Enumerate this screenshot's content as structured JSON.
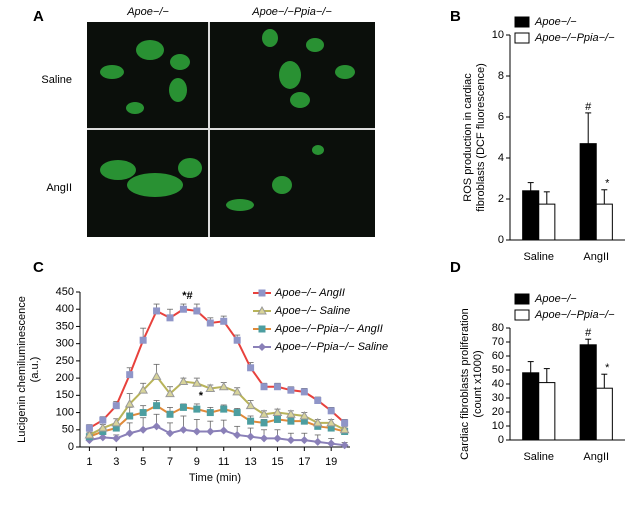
{
  "panel_a": {
    "label": "A",
    "columns": [
      "Apoe−/−",
      "Apoe−/−Ppia−/−"
    ],
    "rows": [
      "Saline",
      "AngII"
    ]
  },
  "chart_data": [
    {
      "type": "bar",
      "label": "B",
      "y_label": [
        "ROS production in cardiac",
        "fibroblasts (DCF fluorescence)"
      ],
      "categories": [
        "Saline",
        "AngII"
      ],
      "series": [
        {
          "name": "Apoe−/−",
          "color": "#000000",
          "values": [
            2.4,
            4.7
          ],
          "errors": [
            0.4,
            1.5
          ],
          "significance": [
            null,
            "#"
          ]
        },
        {
          "name": "Apoe−/−Ppia−/−",
          "color": "#ffffff",
          "values": [
            1.75,
            1.75
          ],
          "errors": [
            0.6,
            0.7
          ],
          "significance": [
            null,
            "*"
          ]
        }
      ],
      "ylim": [
        0,
        10
      ],
      "yticks": [
        0,
        2,
        4,
        6,
        8,
        10
      ],
      "legend": "top-left"
    },
    {
      "type": "line",
      "label": "C",
      "y_label": [
        "Lucigenin chemiluminescence",
        "(a.u.)"
      ],
      "x_label": "Time (min)",
      "x": [
        1,
        2,
        3,
        4,
        5,
        6,
        7,
        8,
        9,
        10,
        11,
        12,
        13,
        14,
        15,
        16,
        17,
        18,
        19,
        20
      ],
      "series": [
        {
          "name": "Apoe−/− AngII",
          "color": "#e8413c",
          "marker_color": "#8f95c8",
          "marker": "square",
          "values": [
            55,
            78,
            120,
            210,
            310,
            395,
            375,
            400,
            395,
            360,
            365,
            310,
            230,
            175,
            175,
            165,
            160,
            135,
            105,
            70
          ],
          "errors": [
            10,
            10,
            12,
            20,
            35,
            20,
            25,
            15,
            20,
            15,
            15,
            15,
            15,
            10,
            10,
            10,
            10,
            10,
            10,
            10
          ],
          "significance": [
            null,
            null,
            null,
            null,
            null,
            null,
            null,
            "*#",
            null,
            null,
            null,
            null,
            null,
            null,
            null,
            null,
            null,
            null,
            null,
            null
          ]
        },
        {
          "name": "Apoe−/− Saline",
          "color": "#b8b35a",
          "marker_color": "#d8d49a",
          "marker": "triangle",
          "values": [
            35,
            55,
            70,
            125,
            165,
            205,
            155,
            190,
            185,
            170,
            175,
            160,
            120,
            95,
            100,
            95,
            90,
            70,
            70,
            50
          ],
          "errors": [
            8,
            10,
            12,
            30,
            20,
            35,
            20,
            10,
            15,
            10,
            12,
            12,
            15,
            10,
            10,
            10,
            10,
            10,
            10,
            8
          ]
        },
        {
          "name": "Apoe−/−Ppia−/− AngII",
          "color": "#e08a3a",
          "marker_color": "#4c9ea0",
          "marker": "square",
          "values": [
            30,
            45,
            55,
            90,
            100,
            120,
            95,
            115,
            110,
            100,
            110,
            100,
            75,
            70,
            80,
            75,
            75,
            60,
            55,
            45
          ],
          "errors": [
            8,
            10,
            10,
            25,
            20,
            15,
            20,
            10,
            15,
            15,
            12,
            12,
            15,
            10,
            10,
            10,
            10,
            10,
            10,
            8
          ],
          "significance": [
            null,
            null,
            null,
            null,
            null,
            null,
            null,
            null,
            "*",
            null,
            null,
            null,
            null,
            null,
            null,
            null,
            null,
            null,
            null,
            null
          ]
        },
        {
          "name": "Apoe−/−Ppia−/− Saline",
          "color": "#8a80b8",
          "marker_color": "#8a80b8",
          "marker": "diamond",
          "values": [
            20,
            28,
            25,
            40,
            50,
            60,
            40,
            50,
            45,
            45,
            48,
            35,
            30,
            25,
            25,
            20,
            20,
            15,
            10,
            5
          ],
          "errors": [
            8,
            10,
            10,
            30,
            35,
            35,
            30,
            40,
            35,
            30,
            30,
            25,
            25,
            25,
            25,
            20,
            20,
            20,
            15,
            8
          ]
        }
      ],
      "xlim": [
        0.3,
        20.4
      ],
      "xticks": [
        1,
        3,
        5,
        7,
        9,
        11,
        13,
        15,
        17,
        19
      ],
      "ylim": [
        0,
        450
      ],
      "yticks": [
        0,
        50,
        100,
        150,
        200,
        250,
        300,
        350,
        400,
        450
      ],
      "legend": "top-right"
    },
    {
      "type": "bar",
      "label": "D",
      "y_label": [
        "Cardiac fibroblasts proliferation",
        "(count x1000)"
      ],
      "categories": [
        "Saline",
        "AngII"
      ],
      "series": [
        {
          "name": "Apoe−/−",
          "color": "#000000",
          "values": [
            48,
            68
          ],
          "errors": [
            8,
            4
          ],
          "significance": [
            null,
            "#"
          ]
        },
        {
          "name": "Apoe−/−Ppia−/−",
          "color": "#ffffff",
          "values": [
            41,
            37
          ],
          "errors": [
            10,
            10
          ],
          "significance": [
            null,
            "*"
          ]
        }
      ],
      "ylim": [
        0,
        80
      ],
      "yticks": [
        0,
        10,
        20,
        30,
        40,
        50,
        60,
        70,
        80
      ],
      "legend": "top-left"
    }
  ]
}
